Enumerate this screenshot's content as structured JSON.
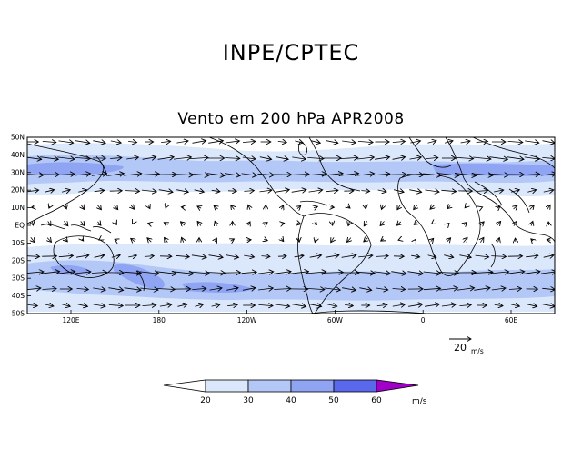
{
  "header": {
    "title": "INPE/CPTEC",
    "subtitle": "Vento em 200 hPa APR2008"
  },
  "map": {
    "lat_labels": [
      "50N",
      "40N",
      "30N",
      "20N",
      "10N",
      "EQ",
      "10S",
      "20S",
      "30S",
      "40S",
      "50S"
    ],
    "lon_labels": [
      "120E",
      "180",
      "120W",
      "60W",
      "0",
      "60E"
    ],
    "reference_vector": {
      "value": "20",
      "unit": "m/s"
    }
  },
  "colorbar": {
    "labels": [
      "20",
      "30",
      "40",
      "50",
      "60"
    ],
    "unit": "m/s",
    "colors": [
      "#ffffff",
      "#dbe7fb",
      "#b3c8f7",
      "#8fa4f3",
      "#5a69ec",
      "#a100c8"
    ]
  }
}
